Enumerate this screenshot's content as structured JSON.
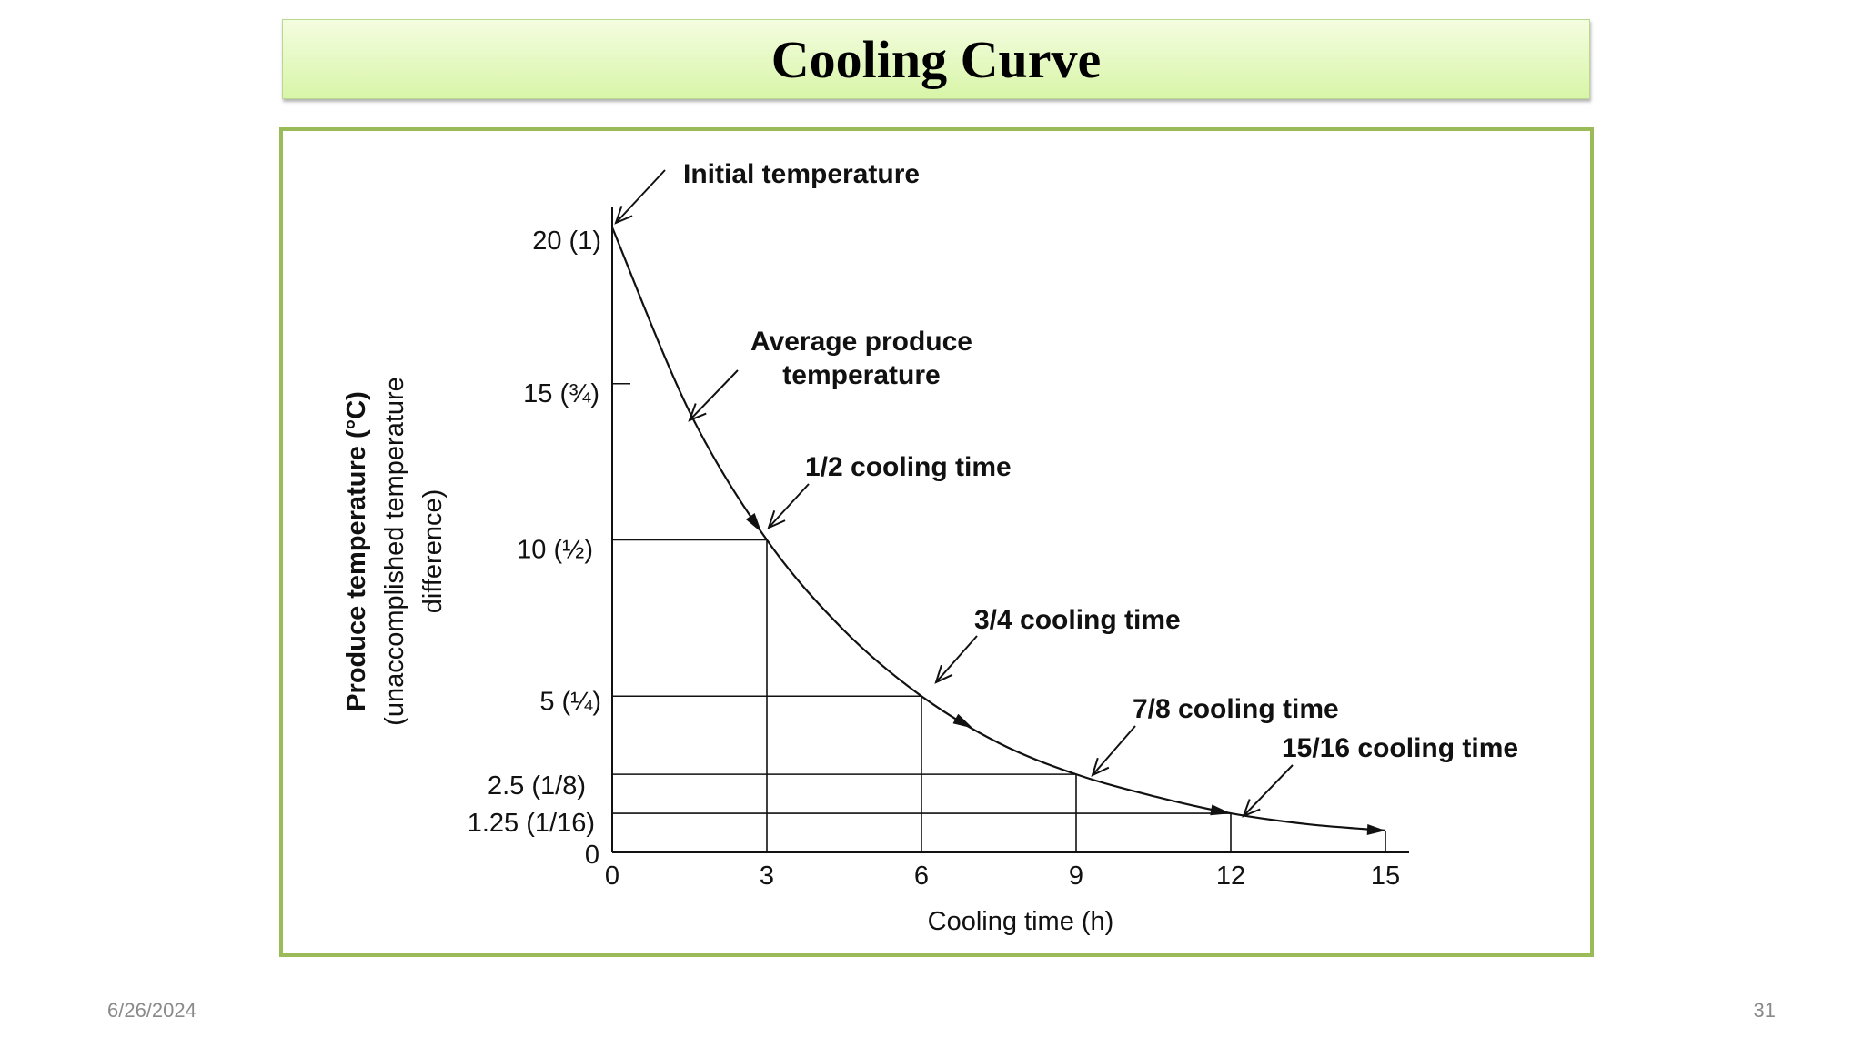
{
  "slide": {
    "title": "Cooling Curve",
    "date": "6/26/2024",
    "page_number": "31"
  },
  "colors": {
    "frame_border": "#9bbb59",
    "line": "#111111"
  },
  "chart_data": {
    "type": "line",
    "xlabel": "Cooling time (h)",
    "ylabel_lines": [
      "Produce temperature (°C)",
      "(unaccomplished temperature",
      "difference)"
    ],
    "x_ticks": [
      {
        "value": 0,
        "label": "0"
      },
      {
        "value": 3,
        "label": "3"
      },
      {
        "value": 6,
        "label": "6"
      },
      {
        "value": 9,
        "label": "9"
      },
      {
        "value": 12,
        "label": "12"
      },
      {
        "value": 15,
        "label": "15"
      }
    ],
    "y_ticks": [
      {
        "value": 20,
        "label": "20 (1)"
      },
      {
        "value": 15,
        "label": "15 (¾)"
      },
      {
        "value": 10,
        "label": "10 (½)"
      },
      {
        "value": 5,
        "label": "5 (¼)"
      },
      {
        "value": 2.5,
        "label": "2.5 (1/8)"
      },
      {
        "value": 1.25,
        "label": "1.25 (1/16)"
      },
      {
        "value": 0,
        "label": "0"
      }
    ],
    "xlim": [
      0,
      15
    ],
    "ylim": [
      0,
      20
    ],
    "series": [
      {
        "x": [
          0,
          1.5,
          3,
          4.5,
          6,
          7.5,
          9,
          10.5,
          12,
          13.5,
          15
        ],
        "y": [
          20,
          14.1,
          10,
          7.1,
          5,
          3.5,
          2.5,
          1.8,
          1.25,
          0.9,
          0.7
        ]
      }
    ],
    "guide_points": [
      {
        "x": 3,
        "y": 10
      },
      {
        "x": 6,
        "y": 5
      },
      {
        "x": 9,
        "y": 2.5
      },
      {
        "x": 12,
        "y": 1.25
      }
    ],
    "annotations": [
      {
        "lines": [
          "Initial temperature"
        ],
        "x": 0,
        "y": 20
      },
      {
        "lines": [
          "Average produce",
          "temperature"
        ],
        "x": 1.5,
        "y": 14.1
      },
      {
        "lines": [
          "1/2 cooling time"
        ],
        "x": 3,
        "y": 10
      },
      {
        "lines": [
          "3/4 cooling time"
        ],
        "x": 6,
        "y": 5
      },
      {
        "lines": [
          "7/8 cooling time"
        ],
        "x": 9,
        "y": 2.5
      },
      {
        "lines": [
          "15/16 cooling time"
        ],
        "x": 12,
        "y": 1.25
      }
    ]
  }
}
